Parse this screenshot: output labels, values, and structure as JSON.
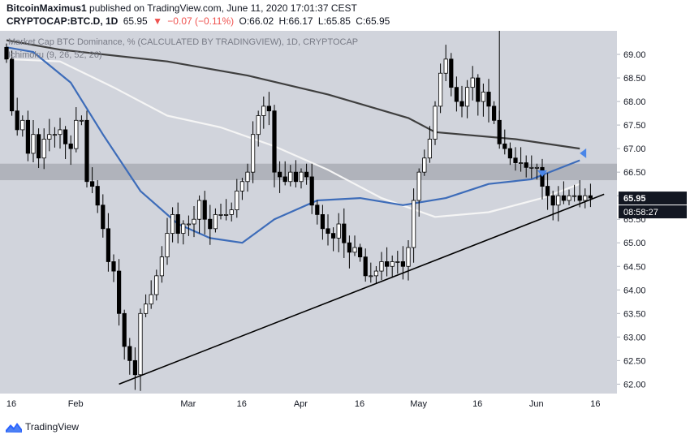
{
  "header": {
    "author": "BitcoinMaximus1",
    "published_text": "published on TradingView.com, June 11, 2020 17:01:37 CEST",
    "symbol": "CRYPTOCAP:BTC.D, 1D",
    "last": "65.95",
    "change": "−0.07 (−0.11%)",
    "open": "O:66.02",
    "high": "H:66.17",
    "low": "L:65.85",
    "close": "C:65.95"
  },
  "footer": {
    "brand": "TradingView"
  },
  "colors": {
    "background": "#d1d4dc",
    "candle": "#000000",
    "ma_dark": "#3f3f3f",
    "ma_white": "#f5f5f5",
    "ma_blue": "#3d6cb9",
    "resistance_band": "#9598a1",
    "trendline": "#000000",
    "marker": "#4a86e8"
  },
  "chart_data": {
    "type": "candlestick",
    "title": "Market Cap BTC Dominance, % (CALCULATED BY TRADINGVIEW), 1D, CRYPTOCAP",
    "indicator_label": "Ichimoku (9, 26, 52, 26)",
    "ylim": [
      61.8,
      69.5
    ],
    "y_ticks": [
      "69.00",
      "68.50",
      "68.00",
      "67.50",
      "67.00",
      "66.50",
      "66.00",
      "65.50",
      "65.00",
      "64.50",
      "64.00",
      "63.50",
      "63.00",
      "62.50",
      "62.00"
    ],
    "x_ticks": [
      "16",
      "Feb",
      "Mar",
      "16",
      "Apr",
      "16",
      "May",
      "16",
      "Jun",
      "16"
    ],
    "last_price_label": "65.95",
    "countdown_label": "08:58:27",
    "resistance_band": [
      66.33,
      66.68
    ],
    "closes": [
      68.9,
      67.8,
      67.4,
      67.6,
      66.9,
      67.3,
      66.8,
      67.2,
      67.3,
      67.3,
      67.4,
      67.1,
      67.0,
      67.6,
      67.6,
      66.3,
      66.2,
      65.8,
      65.3,
      64.6,
      64.4,
      63.5,
      62.8,
      62.5,
      62.2,
      63.5,
      63.7,
      63.9,
      64.3,
      64.7,
      65.2,
      65.6,
      65.2,
      65.4,
      65.4,
      65.5,
      65.9,
      65.5,
      65.3,
      65.6,
      65.6,
      65.6,
      65.7,
      66.1,
      66.3,
      66.5,
      67.3,
      67.7,
      67.9,
      67.8,
      66.5,
      66.4,
      66.3,
      66.5,
      66.3,
      66.5,
      66.4,
      65.8,
      65.6,
      65.3,
      65.2,
      65.1,
      65.4,
      65.0,
      64.8,
      64.9,
      64.7,
      64.3,
      64.3,
      64.4,
      64.6,
      64.5,
      64.6,
      64.6,
      64.5,
      64.9,
      65.9,
      66.5,
      66.8,
      67.2,
      67.9,
      68.6,
      68.9,
      68.3,
      68.0,
      67.9,
      68.3,
      68.5,
      68.0,
      68.2,
      67.9,
      67.6,
      67.1,
      67.0,
      66.8,
      66.7,
      66.7,
      66.6,
      66.6,
      66.6,
      66.2,
      66.0,
      65.8,
      66.0,
      65.9,
      66.0,
      66.0,
      65.9,
      66.0,
      65.95
    ],
    "ma_dark": [
      [
        0,
        69.3
      ],
      [
        10,
        69.1
      ],
      [
        30,
        68.85
      ],
      [
        45,
        68.55
      ],
      [
        60,
        68.15
      ],
      [
        75,
        67.65
      ],
      [
        80,
        67.35
      ],
      [
        95,
        67.2
      ],
      [
        107,
        67.0
      ]
    ],
    "ma_white": [
      [
        0,
        68.9
      ],
      [
        10,
        68.85
      ],
      [
        20,
        68.3
      ],
      [
        30,
        67.7
      ],
      [
        40,
        67.45
      ],
      [
        50,
        67.05
      ],
      [
        60,
        66.55
      ],
      [
        70,
        65.95
      ],
      [
        80,
        65.55
      ],
      [
        90,
        65.65
      ],
      [
        100,
        65.95
      ],
      [
        107,
        66.25
      ]
    ],
    "ma_blue": [
      [
        0,
        69.15
      ],
      [
        5,
        69.05
      ],
      [
        12,
        68.4
      ],
      [
        18,
        67.3
      ],
      [
        25,
        66.1
      ],
      [
        32,
        65.4
      ],
      [
        38,
        65.1
      ],
      [
        44,
        65.0
      ],
      [
        50,
        65.5
      ],
      [
        58,
        65.9
      ],
      [
        66,
        65.95
      ],
      [
        74,
        65.8
      ],
      [
        82,
        65.95
      ],
      [
        90,
        66.25
      ],
      [
        98,
        66.35
      ],
      [
        107,
        66.75
      ]
    ],
    "trendline": [
      [
        21,
        62.0
      ],
      [
        107,
        65.98
      ]
    ],
    "markers": [
      {
        "i": 100,
        "y": 66.45,
        "dir": "down"
      },
      {
        "i": 107,
        "y": 66.9,
        "dir": "left"
      }
    ],
    "spike": {
      "i": 92,
      "high": 69.95
    }
  }
}
